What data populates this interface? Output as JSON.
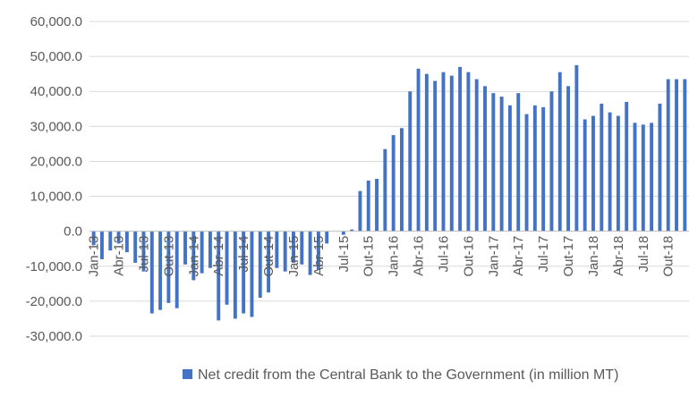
{
  "chart_data": {
    "type": "bar",
    "title": "",
    "xlabel": "",
    "ylabel": "",
    "ylim": [
      -30000,
      60000
    ],
    "yticks": [
      60000,
      50000,
      40000,
      30000,
      20000,
      10000,
      0,
      -10000,
      -20000,
      -30000
    ],
    "ytick_labels": [
      "60,000.0",
      "50,000.0",
      "40,000.0",
      "30,000.0",
      "20,000.0",
      "10,000.0",
      "0.0",
      "-10,000.0",
      "-20,000.0",
      "-30,000.0"
    ],
    "grid": "horizontal",
    "legend_position": "bottom",
    "bar_color": "#4472c4",
    "categories": [
      "Jan-13",
      "Fev-13",
      "Mar-13",
      "Abr-13",
      "Mai-13",
      "Jun-13",
      "Jul-13",
      "Ago-13",
      "Set-13",
      "Out-13",
      "Nov-13",
      "Dez-13",
      "Jan-14",
      "Fev-14",
      "Mar-14",
      "Abr-14",
      "Mai-14",
      "Jun-14",
      "Jul-14",
      "Ago-14",
      "Set-14",
      "Out-14",
      "Nov-14",
      "Dez-14",
      "Jan-15",
      "Fev-15",
      "Mar-15",
      "Abr-15",
      "Mai-15",
      "Jun-15",
      "Jul-15",
      "Ago-15",
      "Set-15",
      "Out-15",
      "Nov-15",
      "Dez-15",
      "Jan-16",
      "Fev-16",
      "Mar-16",
      "Abr-16",
      "Mai-16",
      "Jun-16",
      "Jul-16",
      "Ago-16",
      "Set-16",
      "Out-16",
      "Nov-16",
      "Dez-16",
      "Jan-17",
      "Fev-17",
      "Mar-17",
      "Abr-17",
      "Mai-17",
      "Jun-17",
      "Jul-17",
      "Ago-17",
      "Set-17",
      "Out-17",
      "Nov-17",
      "Dez-17",
      "Jan-18",
      "Fev-18",
      "Mar-18",
      "Abr-18",
      "Mai-18",
      "Jun-18",
      "Jul-18",
      "Ago-18",
      "Set-18",
      "Out-18",
      "Nov-18",
      "Dez-18"
    ],
    "xtick_labels": [
      "Jan-13",
      "Abr-13",
      "Jul-13",
      "Out-13",
      "Jan-14",
      "Abr-14",
      "Jul-14",
      "Out-14",
      "Jan-15",
      "Abr-15",
      "Jul-15",
      "Out-15",
      "Jan-16",
      "Abr-16",
      "Jul-16",
      "Out-16",
      "Jan-17",
      "Abr-17",
      "Jul-17",
      "Out-17",
      "Jan-18",
      "Abr-18",
      "Jul-18",
      "Out-18"
    ],
    "series": [
      {
        "name": "Net credit from the Central Bank to the Government (in million MT)",
        "values": [
          -4000,
          -8000,
          -5500,
          -3500,
          -6000,
          -9000,
          -11500,
          -23500,
          -22500,
          -20500,
          -22000,
          -9500,
          -14000,
          -12000,
          -10500,
          -25500,
          -21000,
          -25000,
          -23500,
          -24500,
          -19000,
          -17500,
          -10500,
          -11500,
          -9000,
          -9500,
          -12500,
          -11000,
          -3500,
          0,
          -1000,
          500,
          11500,
          14500,
          15000,
          23500,
          27500,
          29500,
          40000,
          46500,
          45000,
          43000,
          45500,
          44500,
          47000,
          45500,
          43500,
          41500,
          39500,
          38500,
          36000,
          39500,
          33500,
          36000,
          35500,
          40000,
          45500,
          41500,
          47500,
          32000,
          33000,
          36500,
          34000,
          33000,
          37000,
          31000,
          30500,
          31000,
          36500,
          43500,
          43500,
          43500
        ]
      }
    ]
  }
}
